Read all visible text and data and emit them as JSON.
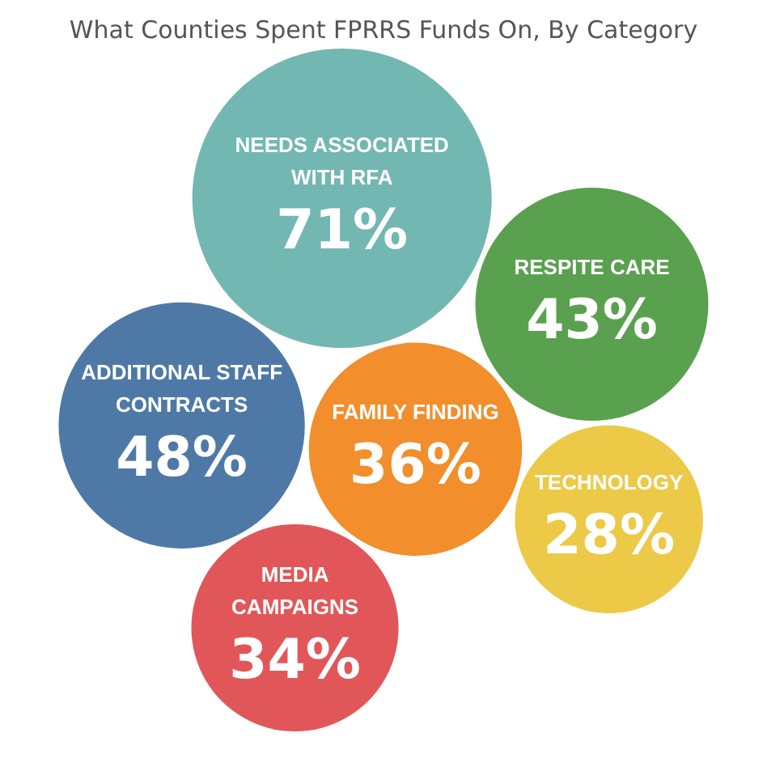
{
  "chart_data": {
    "type": "other",
    "title": "What Counties Spent FPRRS Funds On, By Category",
    "categories": [
      "NEEDS ASSOCIATED WITH RFA",
      "RESPITE CARE",
      "FAMILY FINDING",
      "ADDITIONAL STAFF CONTRACTS",
      "MEDIA CAMPAIGNS",
      "TECHNOLOGY"
    ],
    "values": [
      71,
      43,
      36,
      48,
      34,
      28
    ],
    "value_labels": [
      "71%",
      "43%",
      "36%",
      "48%",
      "34%",
      "28%"
    ],
    "colors": [
      "#72b7b2",
      "#59a14f",
      "#f28e2b",
      "#4e79a7",
      "#e15759",
      "#edc948"
    ]
  }
}
